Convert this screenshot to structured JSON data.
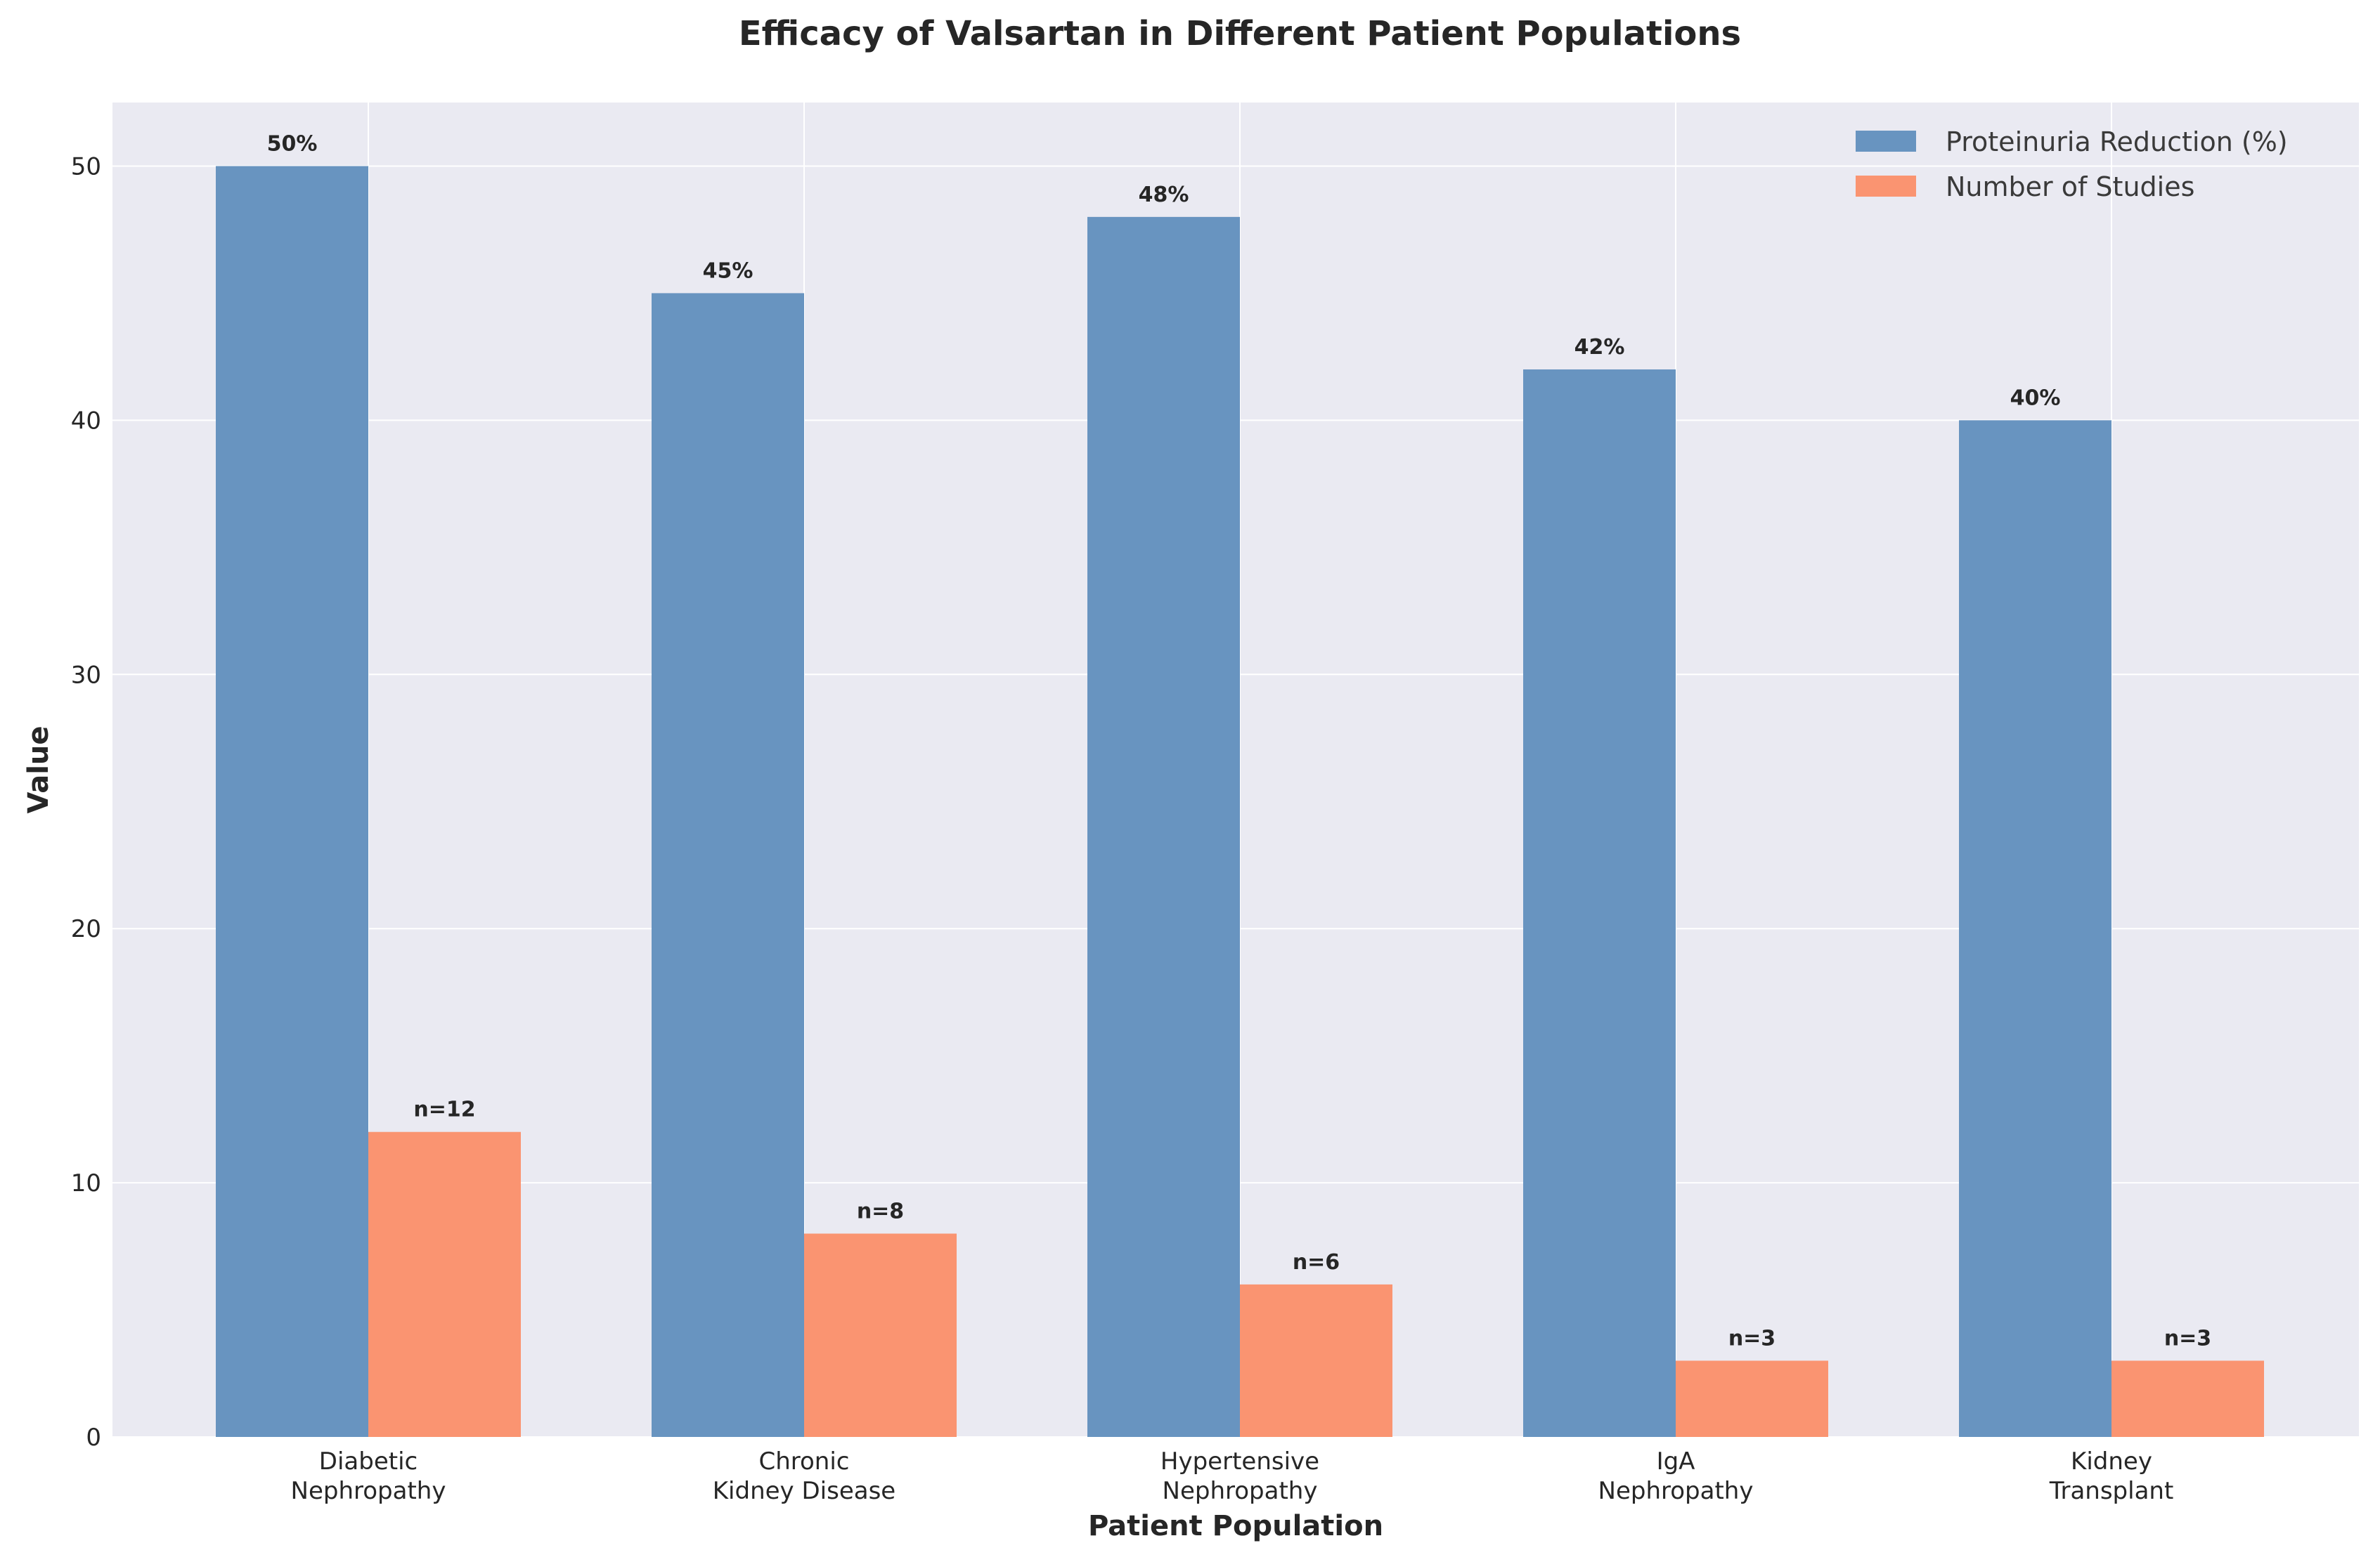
{
  "chart_data": {
    "type": "bar",
    "title": "Efficacy of Valsartan in Different Patient Populations",
    "xlabel": "Patient Population",
    "ylabel": "Value",
    "categories": [
      [
        "Diabetic",
        "Nephropathy"
      ],
      [
        "Chronic",
        "Kidney Disease"
      ],
      [
        "Hypertensive",
        "Nephropathy"
      ],
      [
        "IgA",
        "Nephropathy"
      ],
      [
        "Kidney",
        "Transplant"
      ]
    ],
    "series": [
      {
        "name": "Proteinuria Reduction (%)",
        "values": [
          50,
          45,
          48,
          42,
          40
        ],
        "labels": [
          "50%",
          "45%",
          "48%",
          "42%",
          "40%"
        ],
        "color": "#6894c0"
      },
      {
        "name": "Number of Studies",
        "values": [
          12,
          8,
          6,
          3,
          3
        ],
        "labels": [
          "n=12",
          "n=8",
          "n=6",
          "n=3",
          "n=3"
        ],
        "color": "#fa9471"
      }
    ],
    "ylim": [
      0,
      52.5
    ],
    "yticks": [
      0,
      10,
      20,
      30,
      40,
      50
    ],
    "grid": true,
    "legend_position": "top-right",
    "background_color": "#eaeaf2"
  }
}
